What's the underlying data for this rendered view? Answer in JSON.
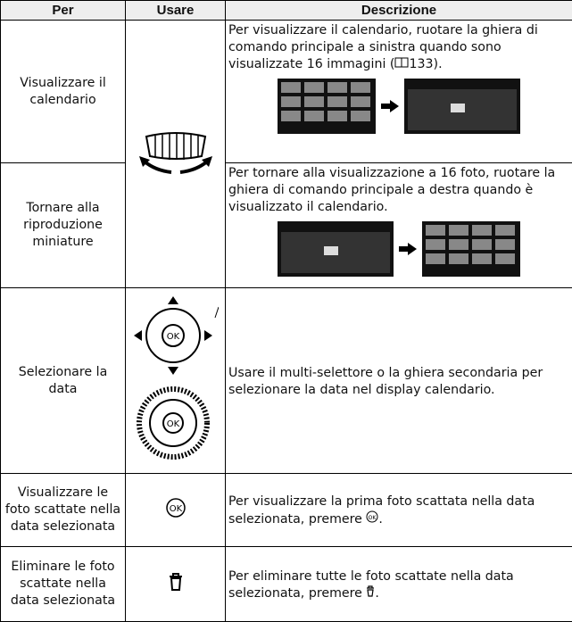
{
  "table": {
    "header": [
      "Per",
      "Usare",
      "Descrizione"
    ],
    "rows": [
      {
        "per": "Visualizzare il calendario",
        "desc": [
          "Per visualizzare il calendario, ruotare la ghiera di comando principale a sinistra quando sono visualizzate 16 immagini (",
          "133)."
        ]
      },
      {
        "per": "Tornare alla riproduzione miniature",
        "desc": [
          "Per tornare alla visualizzazione a 16 foto, ruotare la ghiera di comando principale a destra quando è visualizzato il calendario."
        ]
      },
      {
        "per": "Selezionare la data",
        "desc": [
          "Usare il multi-selettore o la ghiera secondaria per selezionare la data nel display calendario."
        ]
      },
      {
        "per": "Visualizzare le foto scattate nella data selezionata",
        "desc": [
          "Per visualizzare la prima foto scattata nella data selezionata, premere ",
          "."
        ]
      },
      {
        "per": "Eliminare le foto scattate nella data selezionata",
        "desc": [
          "Per eliminare tutte le foto scattate nella data selezionata, premere ",
          "."
        ]
      }
    ]
  }
}
